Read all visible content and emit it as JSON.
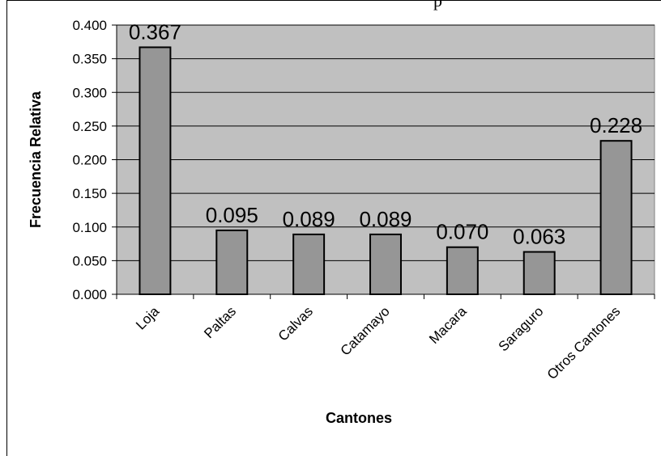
{
  "title_fragment": "p",
  "chart_data": {
    "type": "bar",
    "title": "",
    "xlabel": "Cantones",
    "ylabel": "Frecuencia Relativa",
    "categories": [
      "Loja",
      "Paltas",
      "Calvas",
      "Catamayo",
      "Macara",
      "Saraguro",
      "Otros Cantones"
    ],
    "values": [
      0.367,
      0.095,
      0.089,
      0.089,
      0.07,
      0.063,
      0.228
    ],
    "data_labels": [
      "0.367",
      "0.095",
      "0.089",
      "0.089",
      "0.070",
      "0.063",
      "0.228"
    ],
    "ylim": [
      0,
      0.4
    ],
    "yticks": [
      0.0,
      0.05,
      0.1,
      0.15,
      0.2,
      0.25,
      0.3,
      0.35,
      0.4
    ],
    "ytick_labels": [
      "0.000",
      "0.050",
      "0.100",
      "0.150",
      "0.200",
      "0.250",
      "0.300",
      "0.350",
      "0.400"
    ],
    "grid": true,
    "legend": "none",
    "colors": {
      "plot_background": "#c0c0c0",
      "bar_fill": "#969696",
      "bar_stroke": "#000000",
      "gridline": "#000000"
    }
  }
}
